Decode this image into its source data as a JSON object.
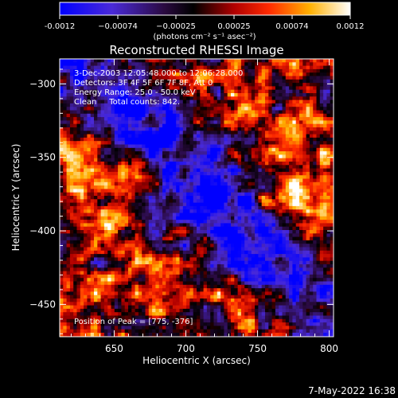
{
  "chart_data": {
    "type": "heatmap",
    "title": "Reconstructed RHESSI Image",
    "xlabel": "Heliocentric X (arcsec)",
    "ylabel": "Heliocentric Y (arcsec)",
    "xlim": [
      612,
      803
    ],
    "ylim": [
      -472,
      -283
    ],
    "xticks": [
      650,
      700,
      750,
      800
    ],
    "yticks": [
      -300,
      -350,
      -400,
      -450
    ],
    "grid": false,
    "colorbar": {
      "range": [
        -0.0012,
        0.0012
      ],
      "ticks": [
        "-0.0012",
        "−0.00074",
        "−0.00025",
        "0.00025",
        "0.00074",
        "0.0012"
      ],
      "unit_label": "(photons cm⁻² s⁻¹ asec⁻²)",
      "colormap": [
        "#0000ff",
        "#5a2bd0",
        "#000000",
        "#a00000",
        "#ff3000",
        "#ffc000",
        "#ffffff"
      ]
    },
    "annotations": [
      "3-Dec-2003 12:05:48.000 to 12:06:28.000",
      "Detectors: 3F 4F 5F 6F 7F 8F, Att 0",
      "Energy Range: 25.0 - 50.0 keV",
      "Clean     Total counts: 842.",
      "Position of Peak = [775, -376]"
    ],
    "peak": {
      "x": 775,
      "y": -376
    }
  },
  "timestamp": "7-May-2022 16:38"
}
